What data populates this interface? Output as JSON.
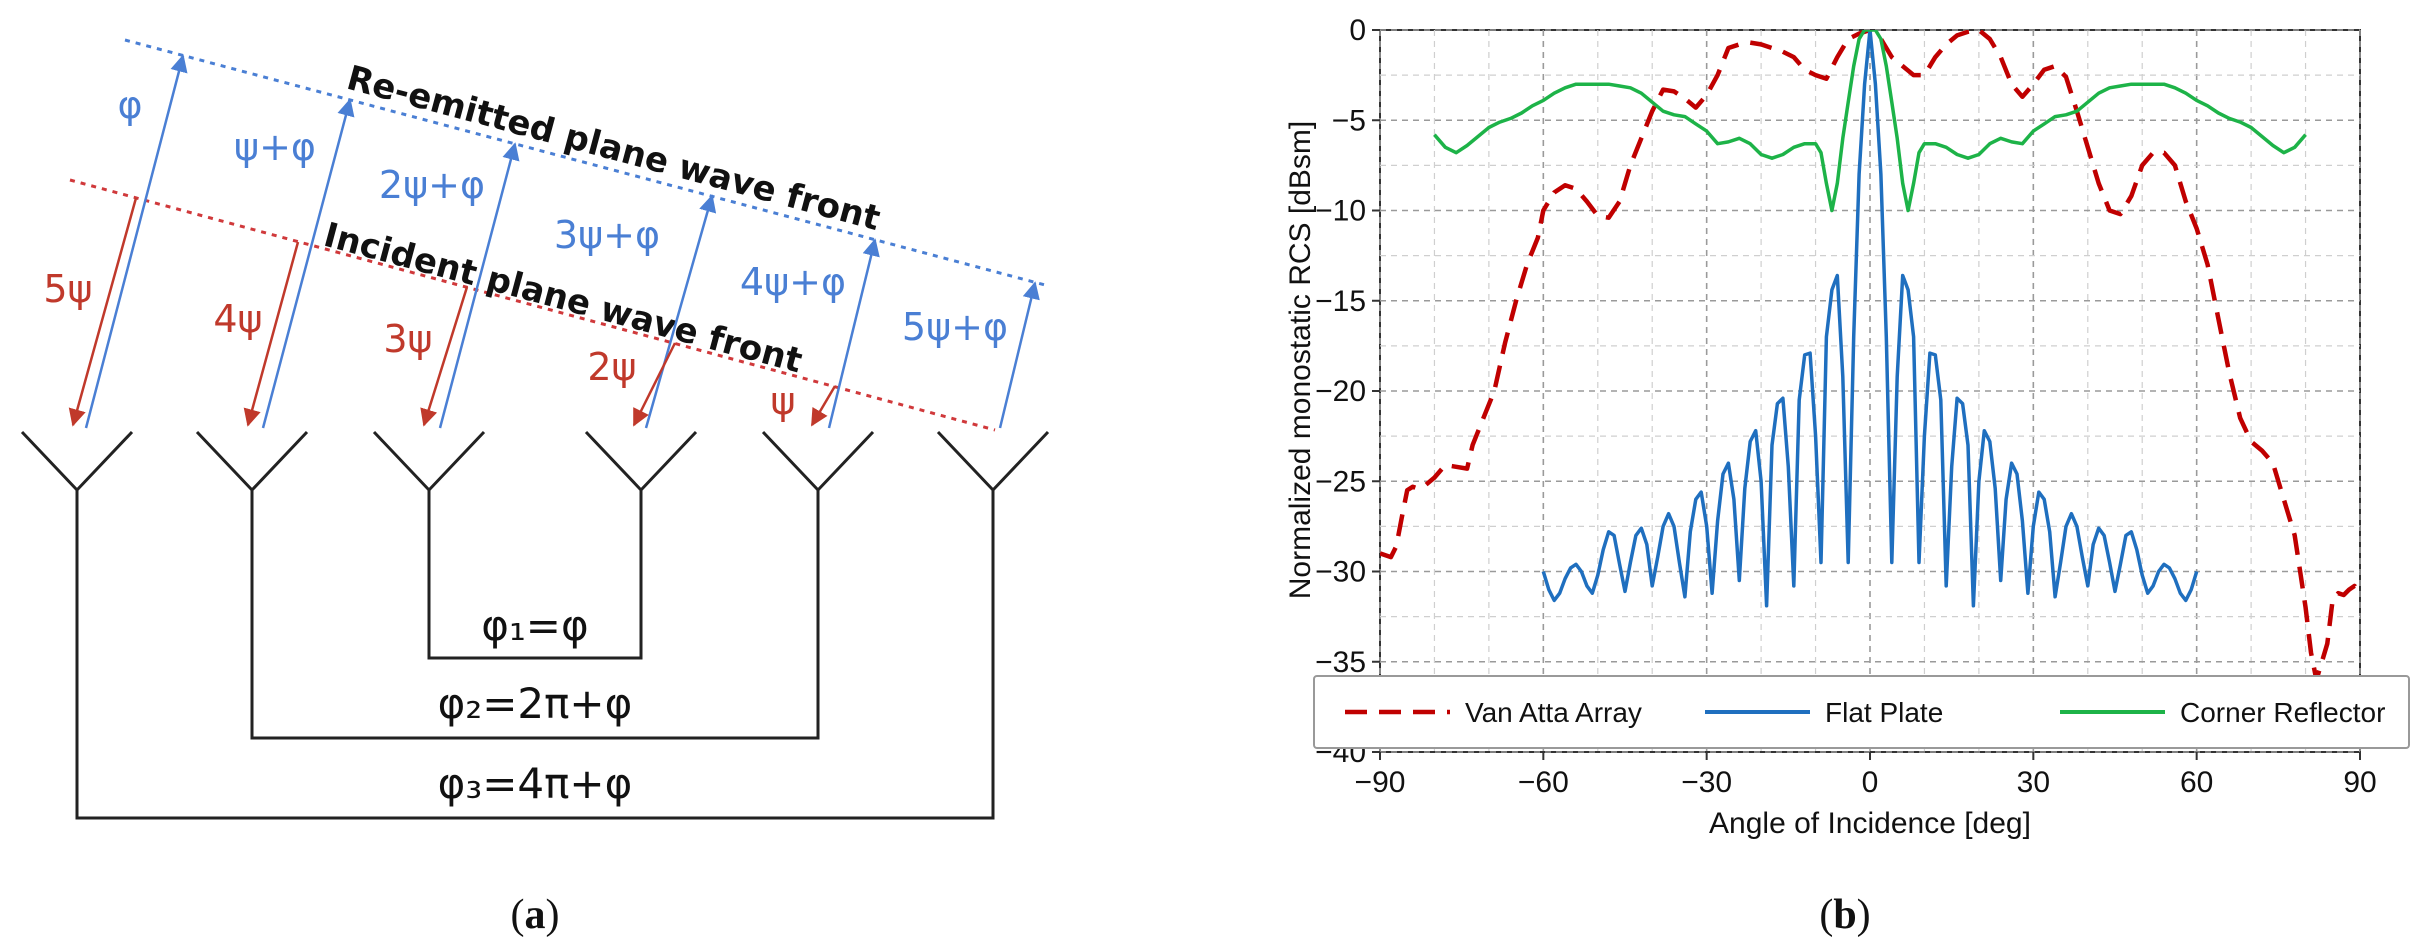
{
  "panel_a": {
    "label_open": "(",
    "label_letter": "a",
    "label_close": ")",
    "reemitted_label": "Re-emitted plane wave front",
    "incident_label": "Incident plane wave front",
    "blue_labels": [
      "φ",
      "ψ+φ",
      "2ψ+φ",
      "3ψ+φ",
      "4ψ+φ",
      "5ψ+φ"
    ],
    "red_labels": [
      "5ψ",
      "4ψ",
      "3ψ",
      "2ψ",
      "ψ"
    ],
    "phase_labels": [
      "φ₁=φ",
      "φ₂=2π+φ",
      "φ₃=4π+φ"
    ],
    "colors": {
      "blue": "#4a7fd4",
      "red": "#c0392b",
      "line": "#222222"
    }
  },
  "panel_b": {
    "label_open": "(",
    "label_letter": "b",
    "label_close": ")"
  },
  "chart_data": {
    "type": "line",
    "xlabel": "Angle of Incidence [deg]",
    "ylabel": "Normalized monostatic RCS [dBsm]",
    "xlim": [
      -90,
      90
    ],
    "ylim": [
      -40,
      0
    ],
    "xticks": [
      -90,
      -60,
      -30,
      0,
      30,
      60,
      90
    ],
    "xtick_labels": [
      "−90",
      "−60",
      "−30",
      "0",
      "30",
      "60",
      "90"
    ],
    "yticks": [
      0,
      -5,
      -10,
      -15,
      -20,
      -25,
      -30,
      -35,
      -40
    ],
    "ytick_labels": [
      "0",
      "−5",
      "−10",
      "−15",
      "−20",
      "−25",
      "−30",
      "−35",
      "−40"
    ],
    "grid": true,
    "legend_position": "bottom",
    "series": [
      {
        "name": "Van Atta Array",
        "color": "#c00000",
        "dash": "dashed",
        "x": [
          -90,
          -88,
          -87,
          -86,
          -85,
          -84,
          -83,
          -82,
          -80,
          -78,
          -76,
          -74,
          -73,
          -71,
          -69,
          -67,
          -65,
          -63,
          -61,
          -60,
          -58,
          -56,
          -54,
          -52,
          -50,
          -48,
          -46,
          -44,
          -42,
          -40,
          -38,
          -36,
          -34,
          -32,
          -30,
          -28,
          -26,
          -24,
          -22,
          -20,
          -18,
          -16,
          -14,
          -12,
          -10,
          -8,
          -6,
          -4,
          -2,
          0,
          2,
          4,
          6,
          8,
          10,
          12,
          14,
          16,
          18,
          20,
          22,
          24,
          26,
          28,
          30,
          32,
          34,
          36,
          38,
          40,
          42,
          44,
          46,
          48,
          50,
          52,
          54,
          56,
          58,
          60,
          62,
          64,
          66,
          68,
          70,
          72,
          74,
          76,
          78,
          80,
          81,
          82,
          83,
          84,
          85,
          86,
          87,
          88,
          89,
          90
        ],
        "y": [
          -29,
          -29.2,
          -28.6,
          -27,
          -25.5,
          -25.3,
          -25.4,
          -25.3,
          -24.8,
          -24.1,
          -24.2,
          -24.3,
          -23,
          -21.5,
          -20,
          -17.3,
          -15,
          -13,
          -11.5,
          -10,
          -9,
          -8.6,
          -8.8,
          -9.5,
          -10.3,
          -10.4,
          -9.5,
          -7.5,
          -6,
          -4.5,
          -3.3,
          -3.4,
          -3.8,
          -4.3,
          -3.6,
          -2.5,
          -1,
          -0.8,
          -0.7,
          -0.8,
          -1,
          -1.2,
          -1.5,
          -2.2,
          -2.5,
          -2.7,
          -1.5,
          -0.5,
          -0.2,
          0,
          -0.5,
          -1.5,
          -2,
          -2.5,
          -2.5,
          -1.5,
          -0.8,
          -0.3,
          -0.1,
          0,
          -0.5,
          -1.5,
          -3,
          -3.7,
          -3,
          -2.2,
          -2,
          -2.6,
          -4.5,
          -6.5,
          -8.5,
          -10,
          -10.2,
          -9.2,
          -7.5,
          -6.8,
          -6.8,
          -7.5,
          -9.5,
          -11,
          -13,
          -16,
          -19,
          -21.5,
          -22.8,
          -23.3,
          -24,
          -26,
          -28,
          -32,
          -34.5,
          -36,
          -35,
          -34,
          -31.5,
          -31.2,
          -31.3,
          -31,
          -30.8,
          -31.3
        ]
      },
      {
        "name": "Flat Plate",
        "color": "#1f6fbf",
        "dash": "solid",
        "x": [
          -60,
          -59,
          -58,
          -57,
          -56,
          -55,
          -54,
          -53,
          -52,
          -51,
          -50,
          -49,
          -48,
          -47,
          -46,
          -45,
          -44,
          -43,
          -42,
          -41,
          -40,
          -39,
          -38,
          -37,
          -36,
          -35,
          -34,
          -33,
          -32,
          -31,
          -30,
          -29,
          -28,
          -27,
          -26,
          -25,
          -24,
          -23,
          -22,
          -21,
          -20,
          -19,
          -18,
          -17,
          -16,
          -15,
          -14,
          -13,
          -12,
          -11,
          -10,
          -9,
          -8,
          -7,
          -6,
          -5,
          -4,
          -3,
          -2,
          -1,
          0,
          1,
          2,
          3,
          4,
          5,
          6,
          7,
          8,
          9,
          10,
          11,
          12,
          13,
          14,
          15,
          16,
          17,
          18,
          19,
          20,
          21,
          22,
          23,
          24,
          25,
          26,
          27,
          28,
          29,
          30,
          31,
          32,
          33,
          34,
          35,
          36,
          37,
          38,
          39,
          40,
          41,
          42,
          43,
          44,
          45,
          46,
          47,
          48,
          49,
          50,
          51,
          52,
          53,
          54,
          55,
          56,
          57,
          58,
          59,
          60
        ],
        "y": [
          -30,
          -31,
          -31.6,
          -31.2,
          -30.4,
          -29.8,
          -29.6,
          -30,
          -30.8,
          -31.2,
          -30.2,
          -28.8,
          -27.8,
          -28,
          -29.6,
          -31.1,
          -29.5,
          -28,
          -27.6,
          -28.5,
          -30.8,
          -29.2,
          -27.5,
          -26.8,
          -27.5,
          -29.5,
          -31.4,
          -27.8,
          -26,
          -25.6,
          -27.5,
          -31.2,
          -27.2,
          -24.6,
          -24,
          -26,
          -30.5,
          -25.4,
          -22.8,
          -22.2,
          -25,
          -31.9,
          -23,
          -20.7,
          -20.4,
          -24.2,
          -30.8,
          -20.5,
          -18,
          -17.9,
          -22.5,
          -29.5,
          -17,
          -14.4,
          -13.6,
          -19.2,
          -29.5,
          -17,
          -8,
          -3,
          0,
          -3,
          -8,
          -17,
          -29.5,
          -19.2,
          -13.6,
          -14.4,
          -17,
          -29.5,
          -22.5,
          -17.9,
          -18,
          -20.5,
          -30.8,
          -24.2,
          -20.4,
          -20.7,
          -23,
          -31.9,
          -25,
          -22.2,
          -22.8,
          -25.4,
          -30.5,
          -26,
          -24,
          -24.6,
          -27.2,
          -31.2,
          -27.5,
          -25.6,
          -26,
          -27.8,
          -31.4,
          -29.5,
          -27.5,
          -26.8,
          -27.5,
          -29.2,
          -30.8,
          -28.5,
          -27.6,
          -28,
          -29.5,
          -31.1,
          -29.6,
          -28,
          -27.8,
          -28.8,
          -30.2,
          -31.2,
          -30.8,
          -30,
          -29.6,
          -29.8,
          -30.4,
          -31.2,
          -31.6,
          -31,
          -30
        ]
      },
      {
        "name": "Corner Reflector",
        "color": "#1db348",
        "dash": "solid",
        "x": [
          -80,
          -78,
          -76,
          -74,
          -72,
          -70,
          -68,
          -66,
          -64,
          -62,
          -60,
          -58,
          -56,
          -54,
          -52,
          -50,
          -48,
          -46,
          -44,
          -42,
          -40,
          -38,
          -36,
          -34,
          -32,
          -30,
          -28,
          -26,
          -24,
          -22,
          -20,
          -18,
          -16,
          -14,
          -12,
          -10,
          -9,
          -8,
          -7,
          -6,
          -5,
          -4,
          -3,
          -2,
          -1,
          0,
          1,
          2,
          3,
          4,
          5,
          6,
          7,
          8,
          9,
          10,
          12,
          14,
          16,
          18,
          20,
          22,
          24,
          26,
          28,
          30,
          32,
          34,
          36,
          38,
          40,
          42,
          44,
          46,
          48,
          50,
          52,
          54,
          56,
          58,
          60,
          62,
          64,
          66,
          68,
          70,
          72,
          74,
          76,
          78,
          80
        ],
        "y": [
          -5.8,
          -6.5,
          -6.8,
          -6.4,
          -5.9,
          -5.4,
          -5.1,
          -4.9,
          -4.6,
          -4.2,
          -3.9,
          -3.5,
          -3.2,
          -3.0,
          -3.0,
          -3.0,
          -3.0,
          -3.1,
          -3.2,
          -3.5,
          -4.0,
          -4.5,
          -4.7,
          -4.8,
          -5.2,
          -5.6,
          -6.3,
          -6.2,
          -6.0,
          -6.3,
          -6.9,
          -7.1,
          -6.9,
          -6.5,
          -6.3,
          -6.3,
          -6.8,
          -8.5,
          -10.0,
          -8.5,
          -6.0,
          -4.0,
          -2.0,
          -0.5,
          0,
          0,
          0,
          -0.5,
          -2.0,
          -4.0,
          -6.0,
          -8.5,
          -10.0,
          -8.5,
          -6.8,
          -6.3,
          -6.3,
          -6.5,
          -6.9,
          -7.1,
          -6.9,
          -6.3,
          -6.0,
          -6.2,
          -6.3,
          -5.6,
          -5.2,
          -4.8,
          -4.7,
          -4.5,
          -4.0,
          -3.5,
          -3.2,
          -3.1,
          -3.0,
          -3.0,
          -3.0,
          -3.0,
          -3.2,
          -3.5,
          -3.9,
          -4.2,
          -4.6,
          -4.9,
          -5.1,
          -5.4,
          -5.9,
          -6.4,
          -6.8,
          -6.5,
          -5.8
        ]
      }
    ]
  }
}
